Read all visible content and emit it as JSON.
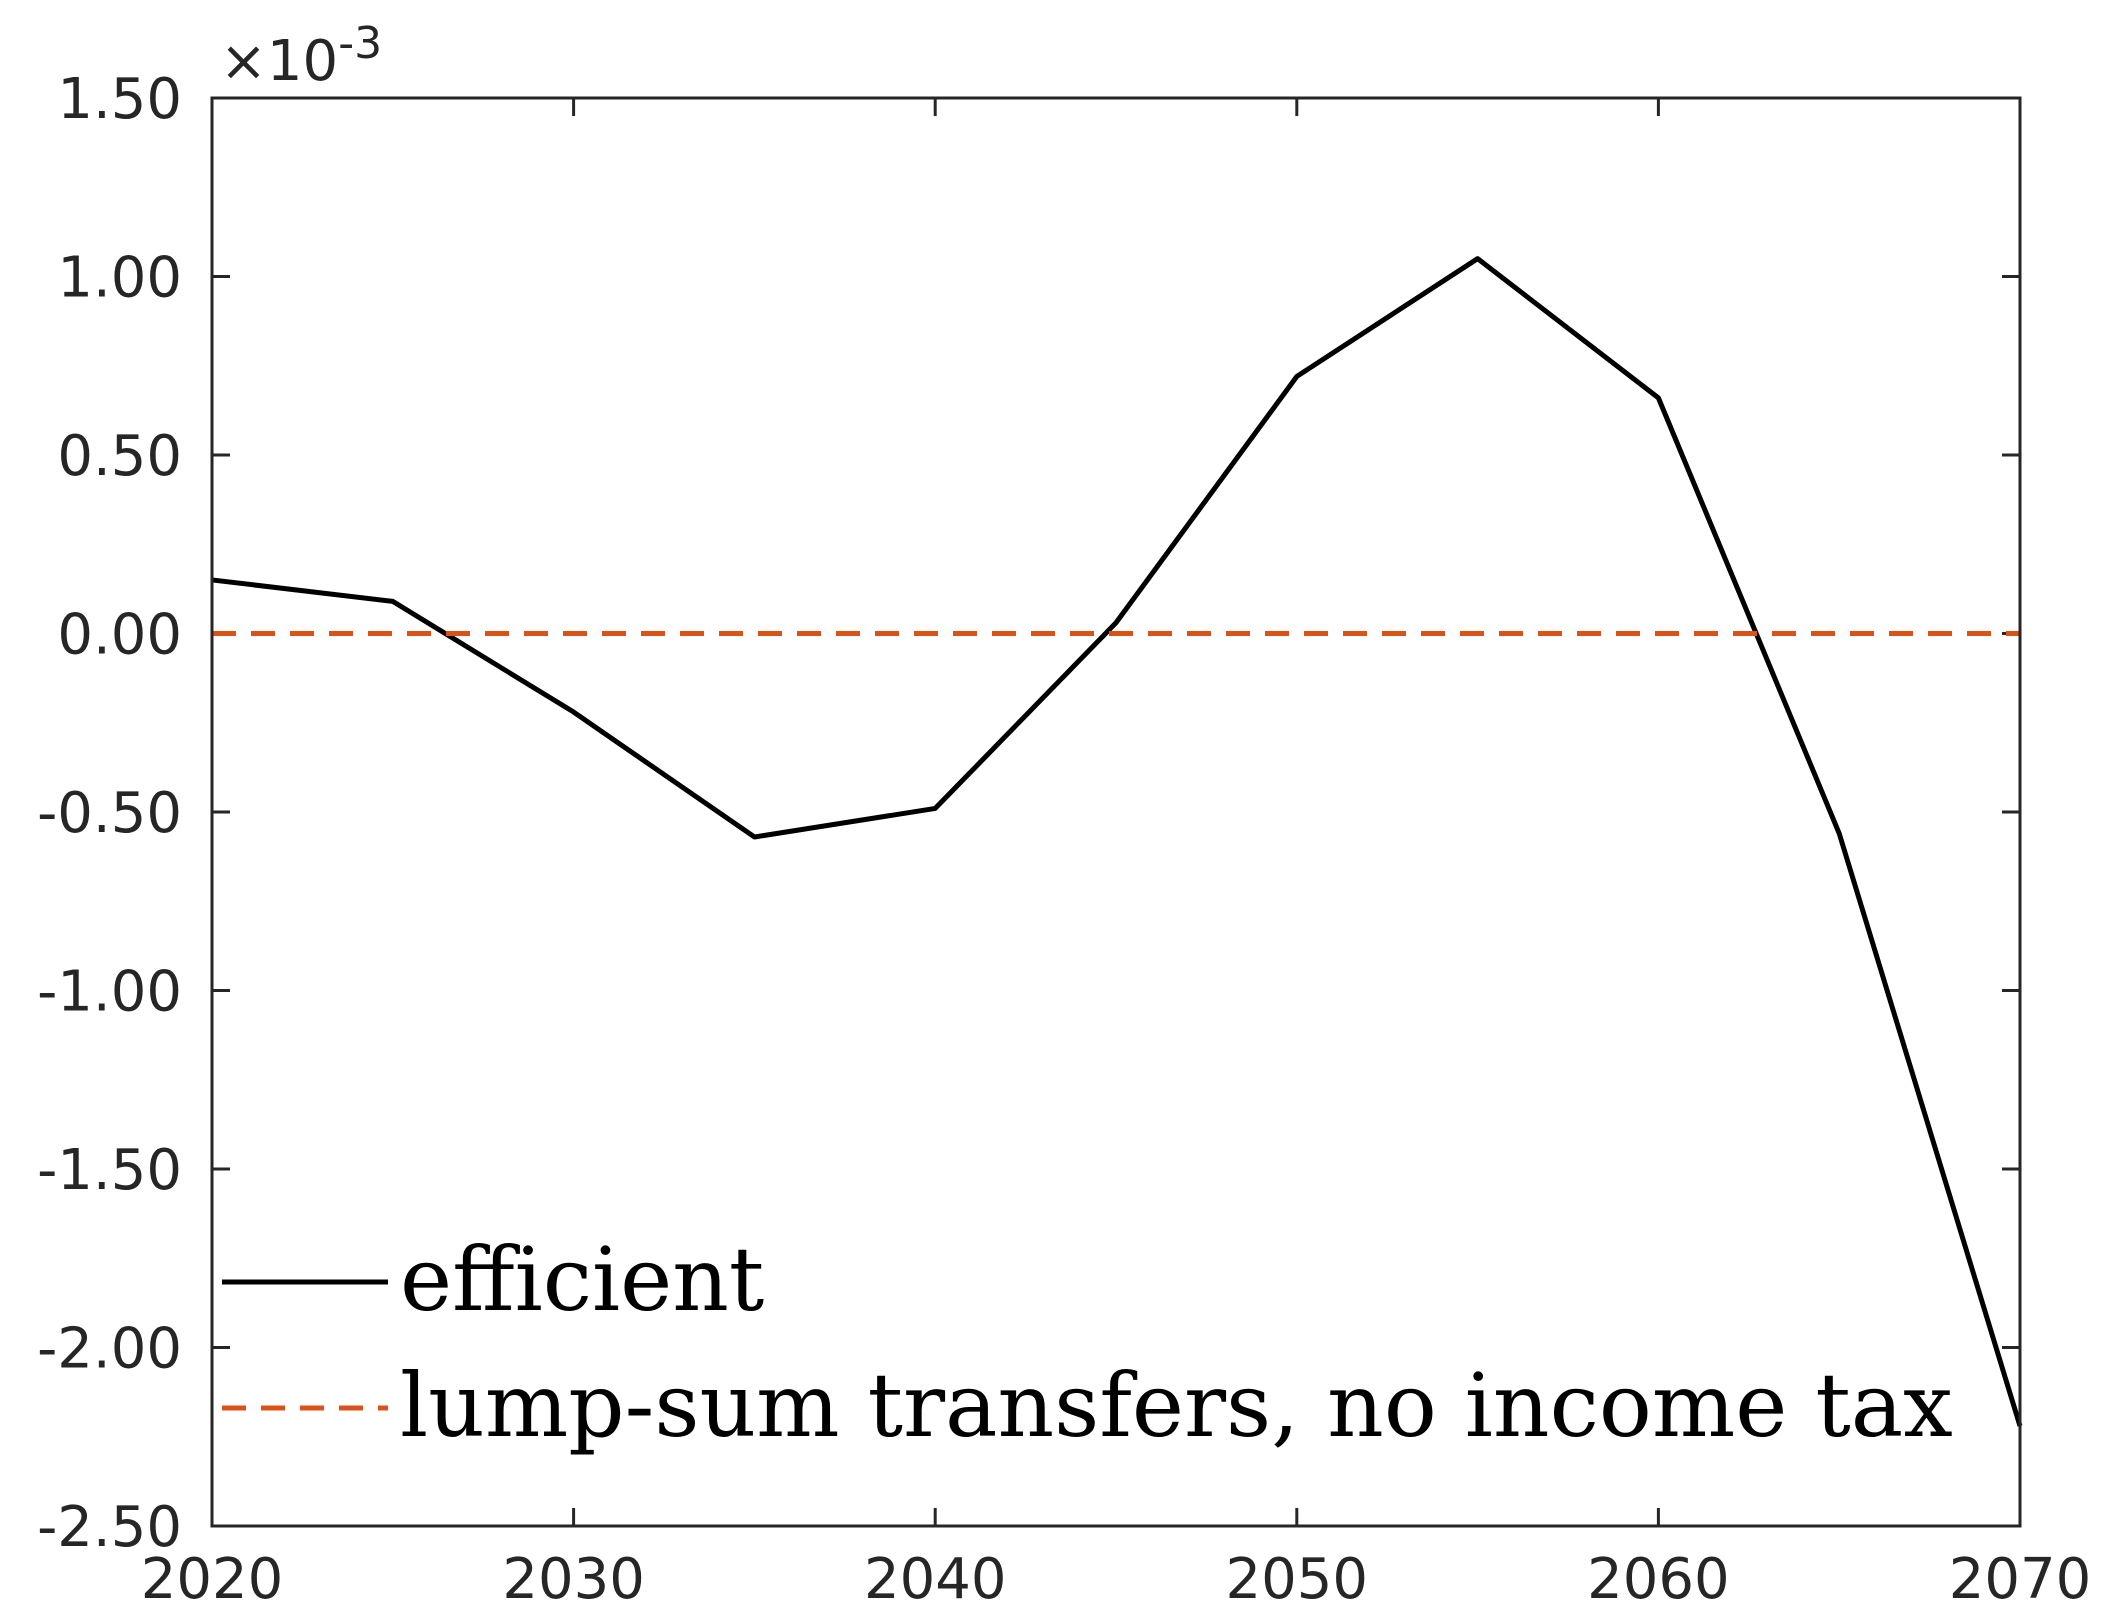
{
  "chart_data": {
    "type": "line",
    "title": "",
    "xlabel": "",
    "ylabel": "",
    "y_exponent_label": {
      "base": "×10",
      "exponent": "-3"
    },
    "xlim": [
      2020,
      2070
    ],
    "ylim": [
      -2.5,
      1.5
    ],
    "x_ticks": [
      2020,
      2030,
      2040,
      2050,
      2060,
      2070
    ],
    "x_tick_labels": [
      "2020",
      "2030",
      "2040",
      "2050",
      "2060",
      "2070"
    ],
    "y_ticks": [
      1.5,
      1.0,
      0.5,
      0.0,
      -0.5,
      -1.0,
      -1.5,
      -2.0,
      -2.5
    ],
    "y_tick_labels": [
      "1.50",
      "1.00",
      "0.50",
      "0.00",
      "-0.50",
      "-1.00",
      "-1.50",
      "-2.00",
      "-2.50"
    ],
    "grid": false,
    "legend_position": "bottom-left",
    "series": [
      {
        "name": "efficient",
        "color": "#000000",
        "style": "solid",
        "x": [
          2020,
          2025,
          2030,
          2035,
          2040,
          2045,
          2050,
          2055,
          2060,
          2065,
          2070
        ],
        "y": [
          0.15,
          0.09,
          -0.22,
          -0.57,
          -0.49,
          0.03,
          0.72,
          1.05,
          0.66,
          -0.56,
          -2.22
        ]
      },
      {
        "name": "lump-sum transfers, no income tax",
        "color": "#D95319",
        "style": "dashed",
        "x": [
          2020,
          2070
        ],
        "y": [
          0.0,
          0.0
        ]
      }
    ]
  }
}
